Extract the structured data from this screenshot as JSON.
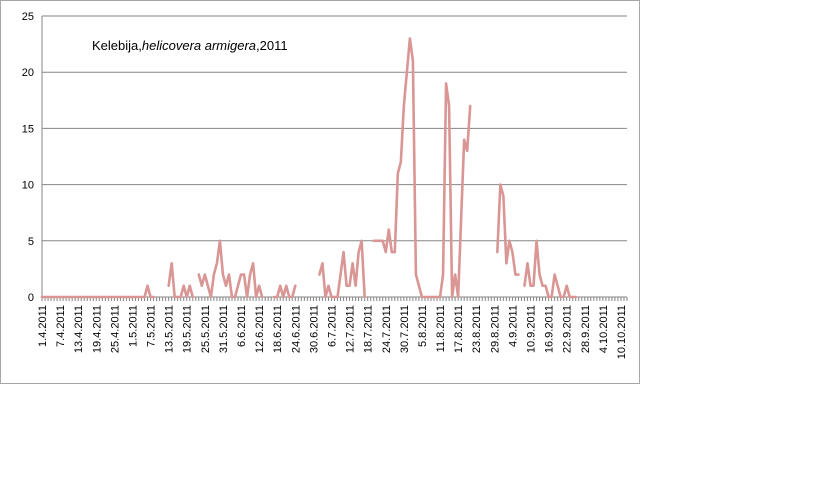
{
  "chart_data": {
    "type": "line",
    "title": {
      "prefix": "Kelebija,",
      "species": "helicovera armigera",
      "suffix": ",2011"
    },
    "xlabel": "",
    "ylabel": "",
    "ylim": [
      0,
      25
    ],
    "yticks": [
      0,
      5,
      10,
      15,
      20,
      25
    ],
    "grid": true,
    "x_start": "1.4.2011",
    "x_end": "12.10.2011",
    "x_tick_labels": [
      "1.4.2011",
      "7.4.2011",
      "13.4.2011",
      "19.4.2011",
      "25.4.2011",
      "1.5.2011",
      "7.5.2011",
      "13.5.2011",
      "19.5.2011",
      "25.5.2011",
      "31.5.2011",
      "6.6.2011",
      "12.6.2011",
      "18.6.2011",
      "24.6.2011",
      "30.6.2011",
      "6.7.2011",
      "12.7.2011",
      "18.7.2011",
      "24.7.2011",
      "30.7.2011",
      "5.8.2011",
      "11.8.2011",
      "17.8.2011",
      "23.8.2011",
      "29.8.2011",
      "4.9.2011",
      "10.9.2011",
      "16.9.2011",
      "22.9.2011",
      "28.9.2011",
      "4.10.2011",
      "10.10.2011"
    ],
    "line_color": "#d99694",
    "series": [
      {
        "name": "",
        "segments": [
          [
            [
              "1.4.2011",
              0
            ],
            [
              "5.5.2011",
              0
            ],
            [
              "6.5.2011",
              1
            ],
            [
              "7.5.2011",
              0
            ],
            [
              "8.5.2011",
              0
            ]
          ],
          [
            [
              "13.5.2011",
              1
            ],
            [
              "14.5.2011",
              3
            ],
            [
              "15.5.2011",
              0
            ],
            [
              "17.5.2011",
              0
            ],
            [
              "18.5.2011",
              1
            ],
            [
              "19.5.2011",
              0
            ],
            [
              "20.5.2011",
              1
            ],
            [
              "21.5.2011",
              0
            ]
          ],
          [
            [
              "23.5.2011",
              2
            ],
            [
              "24.5.2011",
              1
            ],
            [
              "25.5.2011",
              2
            ],
            [
              "26.5.2011",
              1
            ],
            [
              "27.5.2011",
              0
            ],
            [
              "28.5.2011",
              2
            ],
            [
              "29.5.2011",
              3
            ],
            [
              "30.5.2011",
              5
            ],
            [
              "31.5.2011",
              2
            ],
            [
              "1.6.2011",
              1
            ],
            [
              "2.6.2011",
              2
            ],
            [
              "3.6.2011",
              0
            ],
            [
              "4.6.2011",
              0
            ],
            [
              "5.6.2011",
              1
            ],
            [
              "6.6.2011",
              2
            ],
            [
              "7.6.2011",
              2
            ],
            [
              "8.6.2011",
              0
            ],
            [
              "9.6.2011",
              2
            ],
            [
              "10.6.2011",
              3
            ],
            [
              "11.6.2011",
              0
            ],
            [
              "12.6.2011",
              1
            ],
            [
              "13.6.2011",
              0
            ]
          ],
          [
            [
              "17.6.2011",
              0
            ],
            [
              "18.6.2011",
              0
            ],
            [
              "19.6.2011",
              1
            ],
            [
              "20.6.2011",
              0
            ],
            [
              "21.6.2011",
              1
            ],
            [
              "22.6.2011",
              0
            ],
            [
              "23.6.2011",
              0
            ],
            [
              "24.6.2011",
              1
            ]
          ],
          [
            [
              "2.7.2011",
              2
            ],
            [
              "3.7.2011",
              3
            ],
            [
              "4.7.2011",
              0
            ],
            [
              "5.7.2011",
              1
            ],
            [
              "6.7.2011",
              0
            ],
            [
              "7.7.2011",
              0
            ],
            [
              "8.7.2011",
              0
            ],
            [
              "9.7.2011",
              2
            ],
            [
              "10.7.2011",
              4
            ],
            [
              "11.7.2011",
              1
            ],
            [
              "12.7.2011",
              1
            ],
            [
              "13.7.2011",
              3
            ],
            [
              "14.7.2011",
              1
            ],
            [
              "15.7.2011",
              4
            ],
            [
              "16.7.2011",
              5
            ],
            [
              "17.7.2011",
              0
            ]
          ],
          [
            [
              "20.7.2011",
              5
            ],
            [
              "21.7.2011",
              5
            ],
            [
              "22.7.2011",
              5
            ],
            [
              "23.7.2011",
              5
            ],
            [
              "24.7.2011",
              4
            ],
            [
              "25.7.2011",
              6
            ],
            [
              "26.7.2011",
              4
            ],
            [
              "27.7.2011",
              4
            ],
            [
              "28.7.2011",
              11
            ],
            [
              "29.7.2011",
              12
            ],
            [
              "30.7.2011",
              17
            ],
            [
              "1.8.2011",
              23
            ],
            [
              "2.8.2011",
              21
            ],
            [
              "3.8.2011",
              2
            ],
            [
              "4.8.2011",
              1
            ],
            [
              "5.8.2011",
              0
            ],
            [
              "11.8.2011",
              0
            ],
            [
              "12.8.2011",
              2
            ],
            [
              "13.8.2011",
              19
            ],
            [
              "14.8.2011",
              17
            ],
            [
              "15.8.2011",
              0
            ],
            [
              "16.8.2011",
              2
            ],
            [
              "17.8.2011",
              0
            ],
            [
              "19.8.2011",
              14
            ],
            [
              "20.8.2011",
              13
            ],
            [
              "21.8.2011",
              17
            ]
          ],
          [
            [
              "30.8.2011",
              4
            ],
            [
              "31.8.2011",
              10
            ],
            [
              "1.9.2011",
              9
            ],
            [
              "2.9.2011",
              3
            ],
            [
              "3.9.2011",
              5
            ],
            [
              "4.9.2011",
              4
            ],
            [
              "5.9.2011",
              2
            ],
            [
              "6.9.2011",
              2
            ]
          ],
          [
            [
              "8.9.2011",
              1
            ],
            [
              "9.9.2011",
              3
            ],
            [
              "10.9.2011",
              1
            ],
            [
              "11.9.2011",
              1
            ],
            [
              "12.9.2011",
              5
            ],
            [
              "13.9.2011",
              2
            ],
            [
              "14.9.2011",
              1
            ],
            [
              "15.9.2011",
              1
            ],
            [
              "16.9.2011",
              0
            ],
            [
              "17.9.2011",
              0
            ],
            [
              "18.9.2011",
              2
            ],
            [
              "19.9.2011",
              1
            ],
            [
              "20.9.2011",
              0
            ],
            [
              "21.9.2011",
              0
            ],
            [
              "22.9.2011",
              1
            ],
            [
              "23.9.2011",
              0
            ],
            [
              "25.9.2011",
              0
            ]
          ]
        ]
      }
    ]
  }
}
